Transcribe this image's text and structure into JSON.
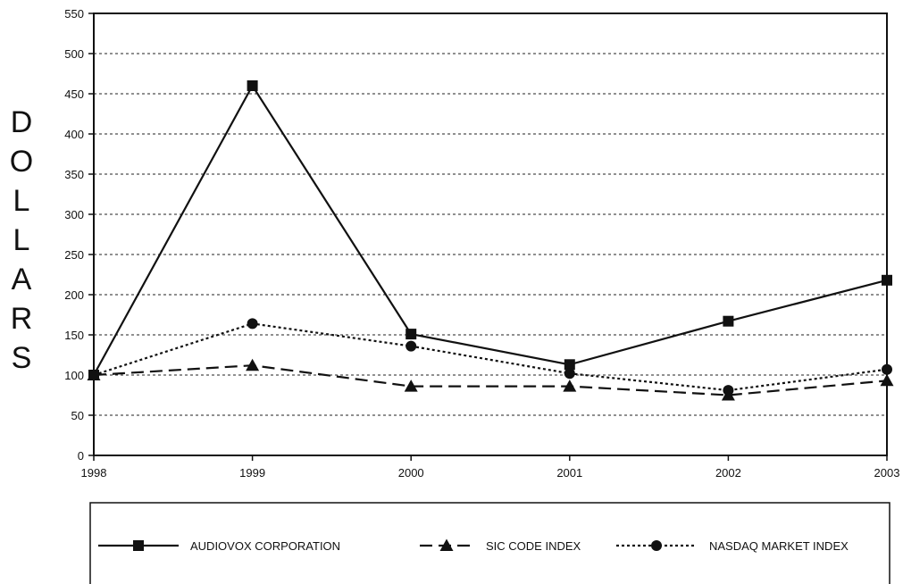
{
  "chart_data": {
    "type": "line",
    "x": [
      "1998",
      "1999",
      "2000",
      "2001",
      "2002",
      "2003"
    ],
    "ylabel": "DOLLARS",
    "ylim": [
      0,
      550
    ],
    "yticks": [
      0,
      50,
      100,
      150,
      200,
      250,
      300,
      350,
      400,
      450,
      500,
      550
    ],
    "grid": true,
    "legend_position": "bottom",
    "series": [
      {
        "name": "AUDIOVOX CORPORATION",
        "marker": "square",
        "style": "solid",
        "values": [
          100,
          460,
          151,
          113,
          167,
          218
        ]
      },
      {
        "name": "SIC CODE INDEX",
        "marker": "triangle",
        "style": "dashed",
        "values": [
          100,
          112,
          86,
          86,
          75,
          93
        ]
      },
      {
        "name": "NASDAQ MARKET INDEX",
        "marker": "circle",
        "style": "dotted",
        "values": [
          100,
          164,
          136,
          102,
          81,
          107
        ]
      }
    ]
  }
}
